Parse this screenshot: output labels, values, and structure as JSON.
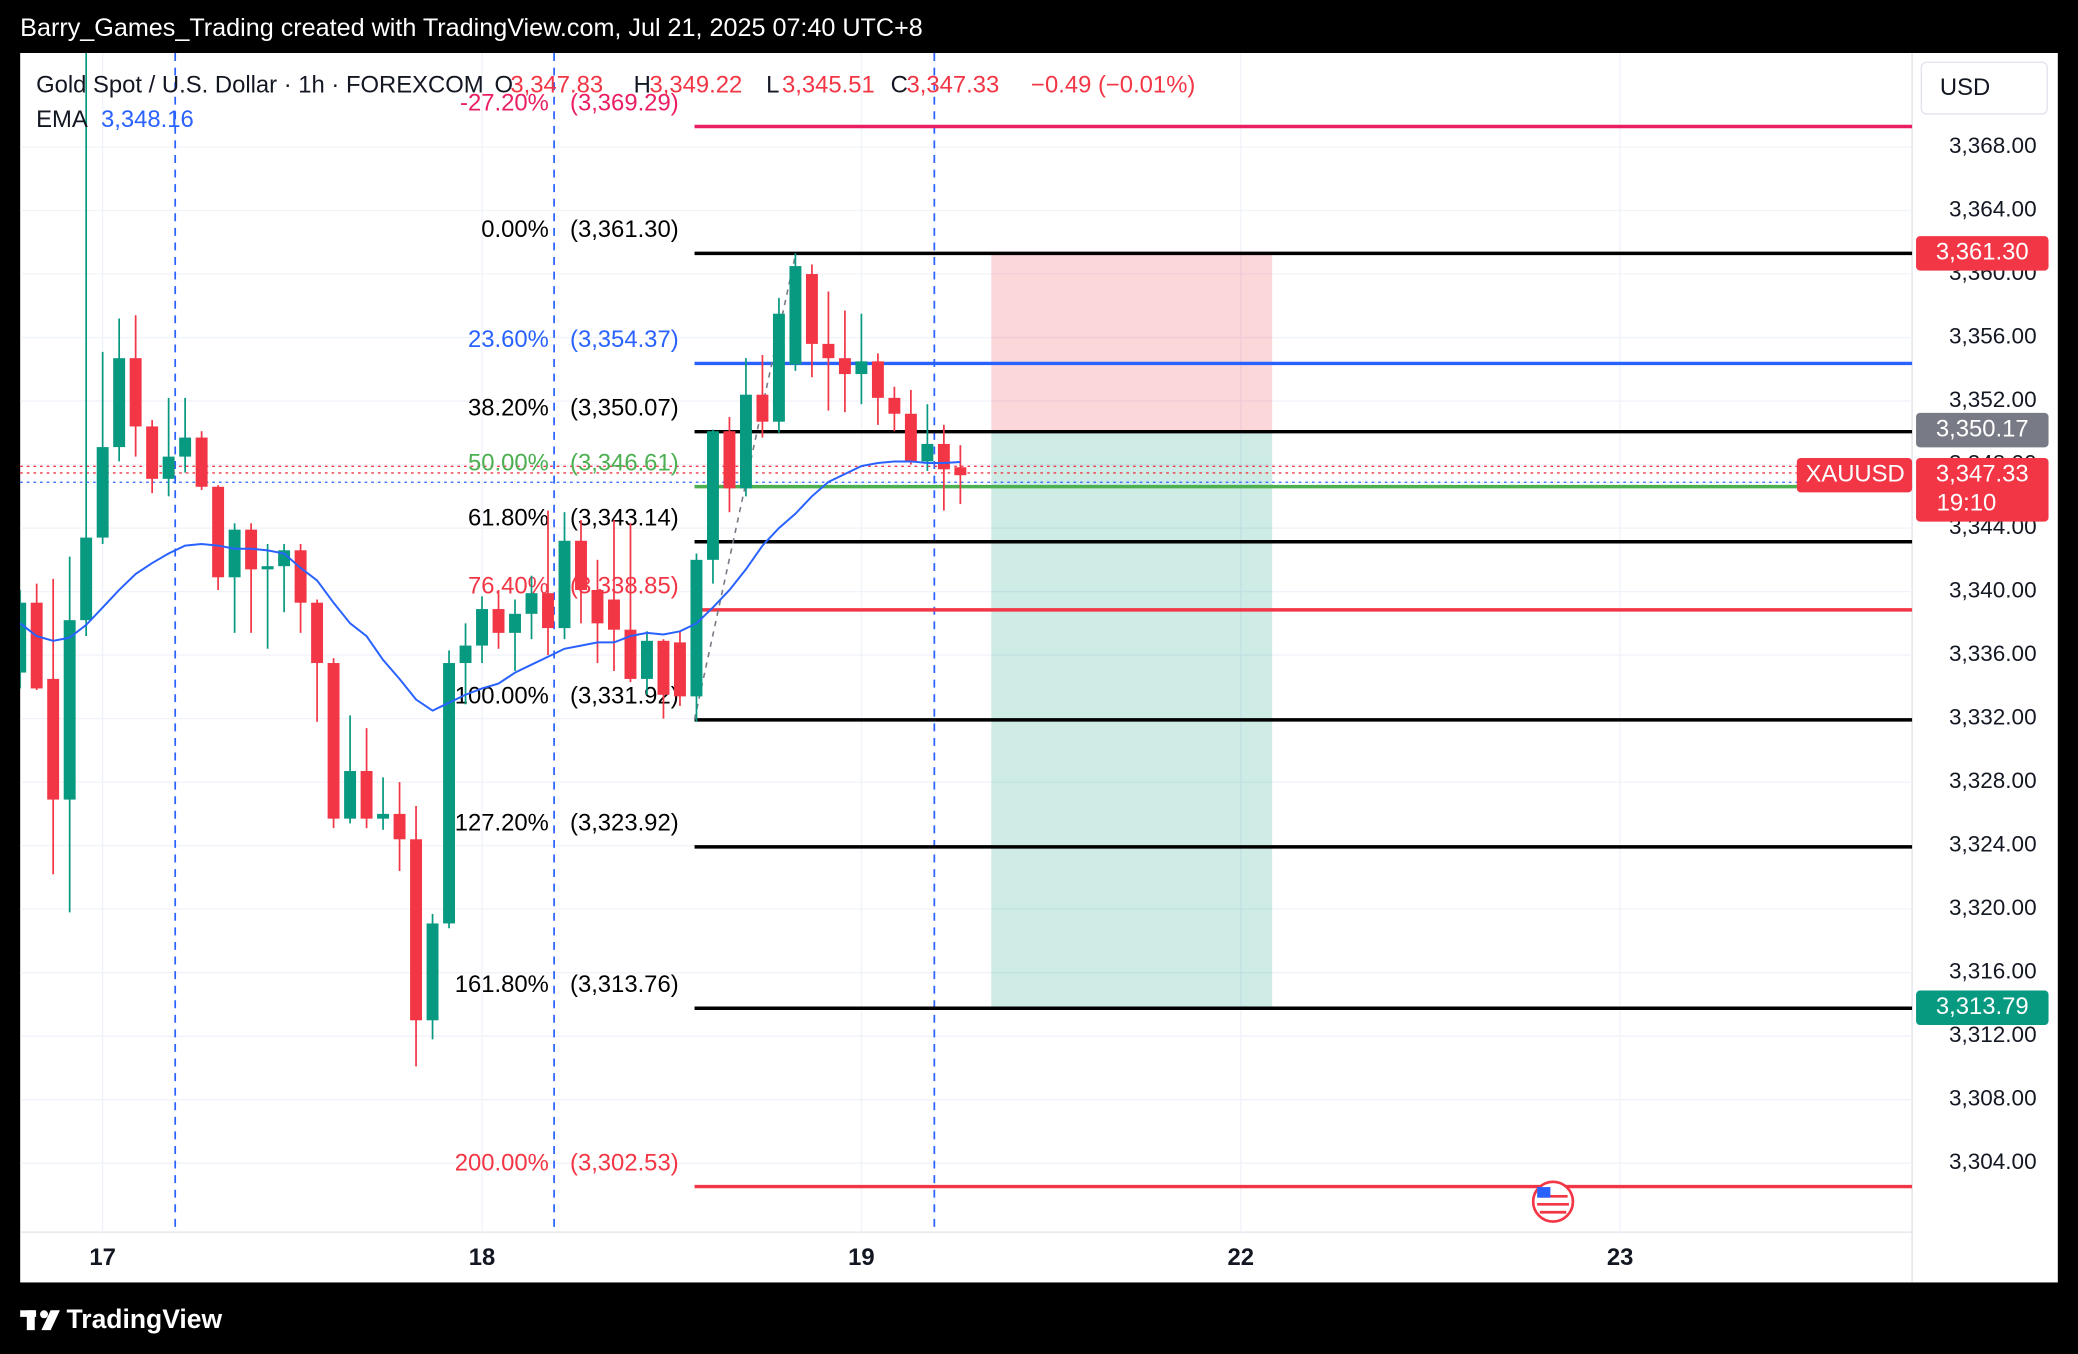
{
  "header": {
    "caption": "Barry_Games_Trading created with TradingView.com, Jul 21, 2025 07:40 UTC+8"
  },
  "footer": {
    "brand": "TradingView"
  },
  "chart_data": {
    "type": "candlestick",
    "title": "Gold Spot / U.S. Dollar · 1h · FOREXCOM",
    "ohlc_legend": {
      "o": "O",
      "open": "3,347.83",
      "h": "H",
      "high": "3,349.22",
      "l": "L",
      "low": "3,345.51",
      "c": "C",
      "close": "3,347.33",
      "change": "−0.49 (−0.01%)"
    },
    "y_axis_unit": "USD",
    "grid": true,
    "ylim": [
      3299.66,
      3373.92
    ],
    "yticks": [
      {
        "value": 3304,
        "label": "3,304.00"
      },
      {
        "value": 3308,
        "label": "3,308.00"
      },
      {
        "value": 3312,
        "label": "3,312.00"
      },
      {
        "value": 3316,
        "label": "3,316.00"
      },
      {
        "value": 3320,
        "label": "3,320.00"
      },
      {
        "value": 3324,
        "label": "3,324.00"
      },
      {
        "value": 3328,
        "label": "3,328.00"
      },
      {
        "value": 3332,
        "label": "3,332.00"
      },
      {
        "value": 3336,
        "label": "3,336.00"
      },
      {
        "value": 3340,
        "label": "3,340.00"
      },
      {
        "value": 3344,
        "label": "3,344.00"
      },
      {
        "value": 3348,
        "label": "3,348.00"
      },
      {
        "value": 3352,
        "label": "3,352.00"
      },
      {
        "value": 3356,
        "label": "3,356.00"
      },
      {
        "value": 3360,
        "label": "3,360.00"
      },
      {
        "value": 3364,
        "label": "3,364.00"
      },
      {
        "value": 3368,
        "label": "3,368.00"
      }
    ],
    "categories": [
      null,
      null,
      null,
      null,
      null,
      "17",
      null,
      null,
      null,
      null,
      null,
      null,
      null,
      null,
      null,
      null,
      null,
      null,
      null,
      null,
      null,
      null,
      null,
      null,
      null,
      null,
      null,
      null,
      "18",
      null,
      null,
      null,
      null,
      null,
      null,
      null,
      null,
      null,
      null,
      null,
      null,
      null,
      null,
      null,
      null,
      null,
      null,
      null,
      null,
      null,
      null,
      "19",
      null,
      null,
      null,
      null,
      null,
      null,
      null,
      null,
      null,
      null,
      null,
      null,
      null,
      null,
      null,
      null,
      null,
      null,
      null,
      null,
      null,
      null,
      "22",
      null,
      null,
      null,
      null,
      null,
      null,
      null,
      null,
      null,
      null,
      null,
      null,
      null,
      null,
      null,
      null,
      null,
      null,
      null,
      null,
      null,
      null,
      "23"
    ],
    "series": [
      {
        "name": "Gold Spot / U.S. Dollar",
        "up_color": "#089981",
        "down_color": "#f23645",
        "open": [
          3334.9,
          3339.3,
          3334.5,
          3326.9,
          3338.2,
          3343.4,
          3349.1,
          3354.7,
          3350.4,
          3347.1,
          3348.5,
          3349.7,
          3346.6,
          3340.9,
          3343.9,
          3341.4,
          3341.6,
          3342.6,
          3339.3,
          3335.5,
          3325.7,
          3328.7,
          3325.7,
          3326.0,
          3324.4,
          3313.0,
          3319.1,
          3335.5,
          3336.6,
          3338.9,
          3337.4,
          3338.6,
          3339.9,
          3337.7,
          3343.2,
          3340.1,
          3339.5,
          3337.6,
          3334.5,
          3336.9,
          3336.8,
          3333.4,
          3342.0,
          3350.1,
          3346.5,
          3352.4,
          3350.7,
          3354.3,
          3360.0,
          3355.6,
          3354.7,
          3353.7,
          3354.5,
          3352.2,
          3351.2,
          3348.2,
          3349.3,
          3347.83,
          null,
          null,
          null,
          null,
          null,
          null,
          null,
          null,
          null,
          null,
          null,
          null,
          null,
          null,
          null,
          null,
          null,
          null,
          null,
          null,
          null,
          null,
          null,
          null,
          null,
          null,
          null,
          null,
          null,
          null,
          null,
          null,
          null,
          null,
          null,
          null,
          null,
          null,
          null,
          null
        ],
        "high": [
          3340.1,
          3340.5,
          3340.8,
          3342.2,
          3375.0,
          3355.1,
          3357.2,
          3357.4,
          3350.8,
          3352.2,
          3352.2,
          3350.1,
          3346.7,
          3344.3,
          3344.3,
          3343.0,
          3343.0,
          3343.0,
          3339.5,
          3335.8,
          3332.2,
          3331.4,
          3328.3,
          3328.0,
          3326.5,
          3319.7,
          3336.3,
          3338.0,
          3339.7,
          3340.1,
          3339.5,
          3341.0,
          3345.1,
          3345.0,
          3344.5,
          3342.0,
          3344.5,
          3344.3,
          3337.5,
          3337.0,
          3337.5,
          3342.4,
          3350.2,
          3351.0,
          3354.7,
          3354.9,
          3358.5,
          3361.3,
          3360.6,
          3358.9,
          3357.7,
          3357.5,
          3355.0,
          3352.9,
          3352.7,
          3351.8,
          3350.5,
          3349.22,
          null,
          null,
          null,
          null,
          null,
          null,
          null,
          null,
          null,
          null,
          null,
          null,
          null,
          null,
          null,
          null,
          null,
          null,
          null,
          null,
          null,
          null,
          null,
          null,
          null,
          null,
          null,
          null,
          null,
          null,
          null,
          null,
          null,
          null,
          null,
          null,
          null,
          null,
          null,
          null
        ],
        "low": [
          3333.9,
          3333.8,
          3322.2,
          3319.8,
          3337.2,
          3343.0,
          3348.2,
          3348.5,
          3346.2,
          3346.0,
          3347.5,
          3346.4,
          3340.1,
          3337.4,
          3337.4,
          3336.4,
          3338.7,
          3337.4,
          3331.8,
          3325.1,
          3325.4,
          3325.1,
          3325.0,
          3322.4,
          3310.1,
          3311.8,
          3318.8,
          3332.9,
          3335.5,
          3336.4,
          3335.0,
          3337.0,
          3336.0,
          3337.0,
          3338.0,
          3335.5,
          3335.0,
          3334.3,
          3333.5,
          3332.0,
          3332.8,
          3331.8,
          3340.5,
          3345.0,
          3346.0,
          3349.7,
          3350.0,
          3353.9,
          3353.5,
          3351.4,
          3351.3,
          3351.8,
          3350.5,
          3350.1,
          3348.0,
          3347.6,
          3345.1,
          3345.51,
          null,
          null,
          null,
          null,
          null,
          null,
          null,
          null,
          null,
          null,
          null,
          null,
          null,
          null,
          null,
          null,
          null,
          null,
          null,
          null,
          null,
          null,
          null,
          null,
          null,
          null,
          null,
          null,
          null,
          null,
          null,
          null,
          null,
          null,
          null,
          null,
          null,
          null,
          null,
          null
        ],
        "close": [
          3339.3,
          3333.9,
          3326.9,
          3338.2,
          3343.4,
          3349.1,
          3354.7,
          3350.4,
          3347.1,
          3348.5,
          3349.7,
          3346.6,
          3340.9,
          3343.9,
          3341.4,
          3341.6,
          3342.6,
          3339.3,
          3335.5,
          3325.7,
          3328.7,
          3325.7,
          3326.0,
          3324.4,
          3313.0,
          3319.1,
          3335.5,
          3336.6,
          3338.9,
          3337.4,
          3338.6,
          3339.9,
          3337.7,
          3343.2,
          3340.1,
          3338.0,
          3337.6,
          3334.5,
          3336.9,
          3333.5,
          3333.4,
          3342.0,
          3350.1,
          3346.5,
          3352.4,
          3350.7,
          3357.5,
          3360.5,
          3355.6,
          3354.7,
          3353.7,
          3354.5,
          3352.2,
          3351.2,
          3348.2,
          3349.3,
          3347.7,
          3347.33,
          null,
          null,
          null,
          null,
          null,
          null,
          null,
          null,
          null,
          null,
          null,
          null,
          null,
          null,
          null,
          null,
          null,
          null,
          null,
          null,
          null,
          null,
          null,
          null,
          null,
          null,
          null,
          null,
          null,
          null,
          null,
          null,
          null,
          null,
          null,
          null,
          null,
          null,
          null,
          null
        ]
      },
      {
        "name": "EMA",
        "color": "#2962ff",
        "value_label": "3,348.16",
        "values": [
          3338.0,
          3337.2,
          3336.9,
          3337.1,
          3337.9,
          3339.0,
          3340.1,
          3341.1,
          3341.8,
          3342.4,
          3342.9,
          3343.0,
          3342.9,
          3342.7,
          3342.7,
          3342.6,
          3342.4,
          3341.5,
          3340.7,
          3339.3,
          3338.0,
          3337.2,
          3335.7,
          3334.5,
          3333.2,
          3332.5,
          3333.0,
          3333.5,
          3333.9,
          3334.2,
          3334.9,
          3335.4,
          3335.9,
          3336.4,
          3336.6,
          3336.8,
          3336.8,
          3337.2,
          3337.4,
          3337.3,
          3337.5,
          3338.0,
          3339.0,
          3340.1,
          3341.4,
          3342.9,
          3344.0,
          3344.9,
          3346.0,
          3346.9,
          3347.4,
          3347.9,
          3348.1,
          3348.2,
          3348.2,
          3348.1,
          3348.1,
          3348.16,
          null,
          null,
          null,
          null,
          null,
          null,
          null,
          null,
          null,
          null,
          null,
          null,
          null,
          null,
          null,
          null,
          null,
          null,
          null,
          null,
          null,
          null,
          null,
          null,
          null,
          null,
          null,
          null,
          null,
          null,
          null,
          null,
          null,
          null,
          null,
          null,
          null,
          null,
          null,
          null
        ]
      }
    ],
    "fib_levels": [
      {
        "ratio_label": "-27.20%",
        "price": 3369.29,
        "price_label": "(3,369.29)",
        "color": "#e91e63"
      },
      {
        "ratio_label": "0.00%",
        "price": 3361.3,
        "price_label": "(3,361.30)",
        "color": "#000000"
      },
      {
        "ratio_label": "23.60%",
        "price": 3354.37,
        "price_label": "(3,354.37)",
        "color": "#2962ff"
      },
      {
        "ratio_label": "38.20%",
        "price": 3350.07,
        "price_label": "(3,350.07)",
        "color": "#000000"
      },
      {
        "ratio_label": "50.00%",
        "price": 3346.61,
        "price_label": "(3,346.61)",
        "color": "#4caf50"
      },
      {
        "ratio_label": "61.80%",
        "price": 3343.14,
        "price_label": "(3,343.14)",
        "color": "#000000"
      },
      {
        "ratio_label": "76.40%",
        "price": 3338.85,
        "price_label": "(3,338.85)",
        "color": "#f23645"
      },
      {
        "ratio_label": "100.00%",
        "price": 3331.92,
        "price_label": "(3,331.92)",
        "color": "#000000"
      },
      {
        "ratio_label": "127.20%",
        "price": 3323.92,
        "price_label": "(3,323.92)",
        "color": "#000000"
      },
      {
        "ratio_label": "161.80%",
        "price": 3313.76,
        "price_label": "(3,313.76)",
        "color": "#000000"
      },
      {
        "ratio_label": "200.00%",
        "price": 3302.53,
        "price_label": "(3,302.53)",
        "color": "#f23645"
      }
    ],
    "position": {
      "stop": 3361.3,
      "stop_label": "3,361.30",
      "stop_color": "#f23645",
      "entry": 3350.17,
      "entry_label": "3,350.17",
      "entry_color": "#787b86",
      "target": 3313.79,
      "target_label": "3,313.79",
      "target_color": "#089981"
    },
    "last_price": {
      "label": "3,347.33",
      "countdown": "19:10",
      "symbol": "XAUUSD",
      "color": "#f23645"
    }
  }
}
